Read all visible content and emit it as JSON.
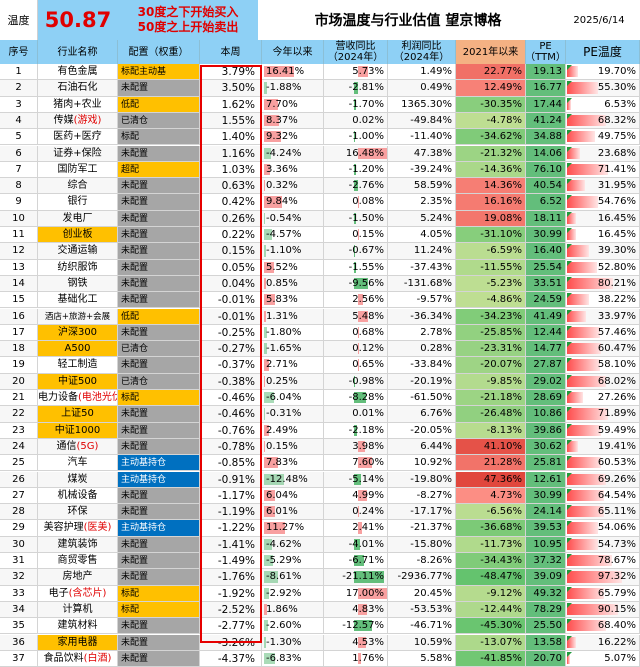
{
  "header": {
    "temp_label": "温度",
    "temp_value": "50.87",
    "note_line1": "30度之下开始买入",
    "note_line2": "50度之上开始卖出",
    "title": "市场温度与行业估值 望京博格",
    "date": "2025/6/14"
  },
  "columns": {
    "idx": "序号",
    "name": "行业名称",
    "config": "配置（权重）",
    "week": "本周",
    "ytd": "今年以来",
    "rev": "营收同比\n（2024年）",
    "profit": "利润同比\n（2024年）",
    "since2021": "2021年以来",
    "pe": "PE\n（TTM）",
    "pe_temp": "PE温度"
  },
  "colors": {
    "header_blue": "#8ed0f5",
    "highlight": "#ffc000",
    "config_grey": "#a6a6a6",
    "config_blue": "#0070c0",
    "green": "#63be7b",
    "red_accent": "#e00000"
  },
  "rows": [
    {
      "idx": "1",
      "name": "有色金属",
      "suffix": "",
      "hl": false,
      "config": "标配主动基",
      "cfg": "yellow",
      "week": "3.79%",
      "ytd": "16.41%",
      "rev": "5.73%",
      "profit": "1.49%",
      "since": "22.77%",
      "pe": "19.13",
      "pe_temp": "19.70%"
    },
    {
      "idx": "2",
      "name": "石油石化",
      "suffix": "",
      "hl": false,
      "config": "未配置",
      "cfg": "grey",
      "week": "3.50%",
      "ytd": "-1.88%",
      "rev": "-2.81%",
      "profit": "0.49%",
      "since": "12.49%",
      "pe": "16.77",
      "pe_temp": "55.30%"
    },
    {
      "idx": "3",
      "name": "猪肉+农业",
      "suffix": "",
      "hl": false,
      "config": "低配",
      "cfg": "yellow",
      "week": "1.62%",
      "ytd": "7.70%",
      "rev": "-1.70%",
      "profit": "1365.30%",
      "since": "-30.35%",
      "pe": "17.44",
      "pe_temp": "6.53%"
    },
    {
      "idx": "4",
      "name": "传媒",
      "suffix": "(游戏)",
      "hl": false,
      "config": "已清仓",
      "cfg": "grey",
      "week": "1.55%",
      "ytd": "8.37%",
      "rev": "0.02%",
      "profit": "-49.84%",
      "since": "-4.78%",
      "pe": "41.24",
      "pe_temp": "68.32%"
    },
    {
      "idx": "5",
      "name": "医药+医疗",
      "suffix": "",
      "hl": false,
      "config": "标配",
      "cfg": "grey",
      "week": "1.40%",
      "ytd": "9.32%",
      "rev": "-1.00%",
      "profit": "-11.40%",
      "since": "-34.62%",
      "pe": "34.88",
      "pe_temp": "49.75%"
    },
    {
      "idx": "6",
      "name": "证券+保险",
      "suffix": "",
      "hl": false,
      "config": "未配置",
      "cfg": "grey",
      "week": "1.16%",
      "ytd": "-4.24%",
      "rev": "16.48%",
      "profit": "47.38%",
      "since": "-21.32%",
      "pe": "14.06",
      "pe_temp": "23.68%"
    },
    {
      "idx": "7",
      "name": "国防军工",
      "suffix": "",
      "hl": false,
      "config": "超配",
      "cfg": "yellow",
      "week": "1.03%",
      "ytd": "3.36%",
      "rev": "-1.20%",
      "profit": "-39.24%",
      "since": "-14.36%",
      "pe": "76.10",
      "pe_temp": "71.41%"
    },
    {
      "idx": "8",
      "name": "综合",
      "suffix": "",
      "hl": false,
      "config": "未配置",
      "cfg": "grey",
      "week": "0.63%",
      "ytd": "0.32%",
      "rev": "-2.76%",
      "profit": "58.59%",
      "since": "14.36%",
      "pe": "40.54",
      "pe_temp": "31.95%"
    },
    {
      "idx": "9",
      "name": "银行",
      "suffix": "",
      "hl": false,
      "config": "未配置",
      "cfg": "grey",
      "week": "0.42%",
      "ytd": "9.84%",
      "rev": "0.08%",
      "profit": "2.35%",
      "since": "16.16%",
      "pe": "6.52",
      "pe_temp": "54.76%"
    },
    {
      "idx": "10",
      "name": "发电厂",
      "suffix": "",
      "hl": false,
      "config": "未配置",
      "cfg": "grey",
      "week": "0.26%",
      "ytd": "-0.54%",
      "rev": "-1.50%",
      "profit": "5.24%",
      "since": "19.08%",
      "pe": "18.11",
      "pe_temp": "16.45%"
    },
    {
      "idx": "11",
      "name": "创业板",
      "suffix": "",
      "hl": true,
      "config": "未配置",
      "cfg": "grey",
      "week": "0.22%",
      "ytd": "-4.57%",
      "rev": "0.15%",
      "profit": "4.05%",
      "since": "-31.10%",
      "pe": "30.99",
      "pe_temp": "16.45%"
    },
    {
      "idx": "12",
      "name": "交通运输",
      "suffix": "",
      "hl": false,
      "config": "未配置",
      "cfg": "grey",
      "week": "0.15%",
      "ytd": "-1.10%",
      "rev": "-0.67%",
      "profit": "11.24%",
      "since": "-6.59%",
      "pe": "16.40",
      "pe_temp": "39.30%"
    },
    {
      "idx": "13",
      "name": "纺织服饰",
      "suffix": "",
      "hl": false,
      "config": "未配置",
      "cfg": "grey",
      "week": "0.05%",
      "ytd": "5.52%",
      "rev": "-1.55%",
      "profit": "-37.43%",
      "since": "-11.55%",
      "pe": "25.54",
      "pe_temp": "52.80%"
    },
    {
      "idx": "14",
      "name": "钢铁",
      "suffix": "",
      "hl": false,
      "config": "未配置",
      "cfg": "grey",
      "week": "0.04%",
      "ytd": "0.85%",
      "rev": "-9.56%",
      "profit": "-131.68%",
      "since": "-5.23%",
      "pe": "33.51",
      "pe_temp": "80.21%"
    },
    {
      "idx": "15",
      "name": "基础化工",
      "suffix": "",
      "hl": false,
      "config": "未配置",
      "cfg": "grey",
      "week": "-0.01%",
      "ytd": "5.83%",
      "rev": "2.56%",
      "profit": "-9.57%",
      "since": "-4.86%",
      "pe": "24.59",
      "pe_temp": "38.22%"
    },
    {
      "idx": "16",
      "name": "酒店+旅游+会展",
      "suffix": "",
      "hl": false,
      "config": "低配",
      "cfg": "yellow",
      "week": "-0.01%",
      "ytd": "1.31%",
      "rev": "5.48%",
      "profit": "-36.34%",
      "since": "-34.23%",
      "pe": "41.49",
      "pe_temp": "33.97%"
    },
    {
      "idx": "17",
      "name": "沪深300",
      "suffix": "",
      "hl": true,
      "config": "未配置",
      "cfg": "grey",
      "week": "-0.25%",
      "ytd": "-1.80%",
      "rev": "0.68%",
      "profit": "2.78%",
      "since": "-25.85%",
      "pe": "12.44",
      "pe_temp": "57.46%"
    },
    {
      "idx": "18",
      "name": "A500",
      "suffix": "",
      "hl": true,
      "config": "已清仓",
      "cfg": "grey",
      "week": "-0.27%",
      "ytd": "-1.65%",
      "rev": "0.12%",
      "profit": "0.28%",
      "since": "-23.31%",
      "pe": "14.77",
      "pe_temp": "60.47%"
    },
    {
      "idx": "19",
      "name": "轻工制造",
      "suffix": "",
      "hl": false,
      "config": "未配置",
      "cfg": "grey",
      "week": "-0.37%",
      "ytd": "2.71%",
      "rev": "0.65%",
      "profit": "-33.84%",
      "since": "-20.07%",
      "pe": "27.87",
      "pe_temp": "58.10%"
    },
    {
      "idx": "20",
      "name": "中证500",
      "suffix": "",
      "hl": true,
      "config": "已清仓",
      "cfg": "grey",
      "week": "-0.38%",
      "ytd": "0.25%",
      "rev": "-0.98%",
      "profit": "-20.19%",
      "since": "-9.85%",
      "pe": "29.02",
      "pe_temp": "68.02%"
    },
    {
      "idx": "21",
      "name": "电力设备",
      "suffix": "(电池光伏)",
      "hl": false,
      "config": "标配",
      "cfg": "yellow",
      "week": "-0.46%",
      "ytd": "-6.04%",
      "rev": "-8.28%",
      "profit": "-61.50%",
      "since": "-21.18%",
      "pe": "28.69",
      "pe_temp": "27.26%"
    },
    {
      "idx": "22",
      "name": "上证50",
      "suffix": "",
      "hl": true,
      "config": "未配置",
      "cfg": "grey",
      "week": "-0.46%",
      "ytd": "-0.31%",
      "rev": "0.01%",
      "profit": "6.76%",
      "since": "-26.48%",
      "pe": "10.86",
      "pe_temp": "71.89%"
    },
    {
      "idx": "23",
      "name": "中证1000",
      "suffix": "",
      "hl": true,
      "config": "未配置",
      "cfg": "grey",
      "week": "-0.76%",
      "ytd": "2.49%",
      "rev": "-2.18%",
      "profit": "-20.05%",
      "since": "-8.13%",
      "pe": "39.86",
      "pe_temp": "59.49%"
    },
    {
      "idx": "24",
      "name": "通信",
      "suffix": "(5G)",
      "hl": false,
      "config": "未配置",
      "cfg": "grey",
      "week": "-0.78%",
      "ytd": "0.15%",
      "rev": "3.98%",
      "profit": "6.44%",
      "since": "41.10%",
      "pe": "30.62",
      "pe_temp": "19.41%"
    },
    {
      "idx": "25",
      "name": "汽车",
      "suffix": "",
      "hl": false,
      "config": "主动基持仓",
      "cfg": "blue",
      "week": "-0.85%",
      "ytd": "7.83%",
      "rev": "7.60%",
      "profit": "10.92%",
      "since": "21.28%",
      "pe": "25.81",
      "pe_temp": "60.53%"
    },
    {
      "idx": "26",
      "name": "煤炭",
      "suffix": "",
      "hl": false,
      "config": "主动基持仓",
      "cfg": "blue",
      "week": "-0.91%",
      "ytd": "-12.48%",
      "rev": "-5.14%",
      "profit": "-19.80%",
      "since": "47.36%",
      "pe": "12.61",
      "pe_temp": "69.26%"
    },
    {
      "idx": "27",
      "name": "机械设备",
      "suffix": "",
      "hl": false,
      "config": "未配置",
      "cfg": "grey",
      "week": "-1.17%",
      "ytd": "6.04%",
      "rev": "4.99%",
      "profit": "-8.27%",
      "since": "4.73%",
      "pe": "30.99",
      "pe_temp": "64.54%"
    },
    {
      "idx": "28",
      "name": "环保",
      "suffix": "",
      "hl": false,
      "config": "未配置",
      "cfg": "grey",
      "week": "-1.19%",
      "ytd": "6.01%",
      "rev": "0.24%",
      "profit": "-17.17%",
      "since": "-6.56%",
      "pe": "24.14",
      "pe_temp": "65.11%"
    },
    {
      "idx": "29",
      "name": "美容护理",
      "suffix": "(医美)",
      "hl": false,
      "config": "主动基持仓",
      "cfg": "blue",
      "week": "-1.22%",
      "ytd": "11.27%",
      "rev": "2.41%",
      "profit": "-21.37%",
      "since": "-36.68%",
      "pe": "39.53",
      "pe_temp": "54.06%"
    },
    {
      "idx": "30",
      "name": "建筑装饰",
      "suffix": "",
      "hl": false,
      "config": "未配置",
      "cfg": "grey",
      "week": "-1.41%",
      "ytd": "-4.62%",
      "rev": "-4.01%",
      "profit": "-15.80%",
      "since": "-11.73%",
      "pe": "10.95",
      "pe_temp": "54.73%"
    },
    {
      "idx": "31",
      "name": "商贸零售",
      "suffix": "",
      "hl": false,
      "config": "未配置",
      "cfg": "grey",
      "week": "-1.49%",
      "ytd": "-5.29%",
      "rev": "-6.71%",
      "profit": "-8.26%",
      "since": "-34.43%",
      "pe": "37.32",
      "pe_temp": "78.67%"
    },
    {
      "idx": "32",
      "name": "房地产",
      "suffix": "",
      "hl": false,
      "config": "未配置",
      "cfg": "grey",
      "week": "-1.76%",
      "ytd": "-8.61%",
      "rev": "-21.11%",
      "profit": "-2936.77%",
      "since": "-48.47%",
      "pe": "39.09",
      "pe_temp": "97.32%"
    },
    {
      "idx": "33",
      "name": "电子",
      "suffix": "(含芯片)",
      "hl": false,
      "config": "标配",
      "cfg": "yellow",
      "week": "-1.92%",
      "ytd": "-2.92%",
      "rev": "17.00%",
      "profit": "20.45%",
      "since": "-9.12%",
      "pe": "49.32",
      "pe_temp": "65.79%"
    },
    {
      "idx": "34",
      "name": "计算机",
      "suffix": "",
      "hl": false,
      "config": "标配",
      "cfg": "yellow",
      "week": "-2.52%",
      "ytd": "1.86%",
      "rev": "4.83%",
      "profit": "-53.53%",
      "since": "-12.44%",
      "pe": "78.29",
      "pe_temp": "90.15%"
    },
    {
      "idx": "35",
      "name": "建筑材料",
      "suffix": "",
      "hl": false,
      "config": "未配置",
      "cfg": "grey",
      "week": "-2.77%",
      "ytd": "-2.60%",
      "rev": "-12.57%",
      "profit": "-46.71%",
      "since": "-45.30%",
      "pe": "25.50",
      "pe_temp": "68.40%"
    },
    {
      "idx": "36",
      "name": "家用电器",
      "suffix": "",
      "hl": true,
      "config": "未配置",
      "cfg": "grey",
      "week": "-3.26%",
      "ytd": "-1.30%",
      "rev": "4.53%",
      "profit": "10.59%",
      "since": "-13.07%",
      "pe": "13.58",
      "pe_temp": "16.22%"
    },
    {
      "idx": "37",
      "name": "食品饮料",
      "suffix": "(白酒)",
      "hl": false,
      "config": "未配置",
      "cfg": "grey",
      "week": "-4.37%",
      "ytd": "-6.83%",
      "rev": "1.76%",
      "profit": "5.58%",
      "since": "-41.85%",
      "pe": "20.70",
      "pe_temp": "5.07%"
    }
  ]
}
